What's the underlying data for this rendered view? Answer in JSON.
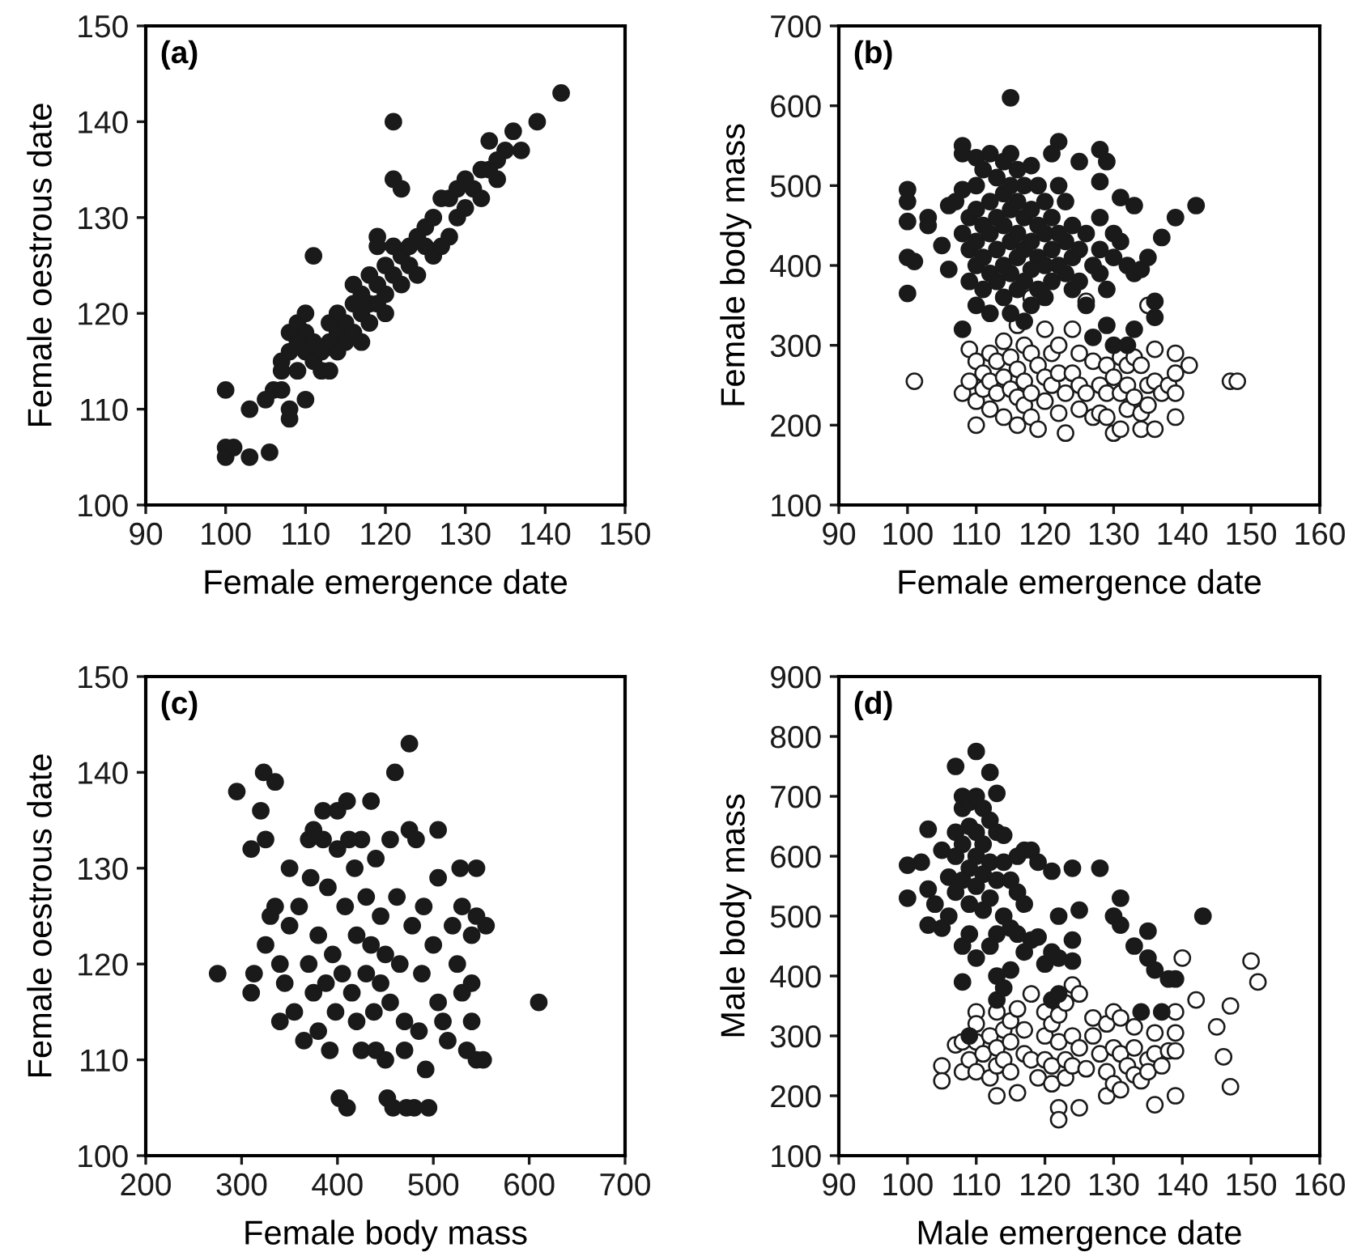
{
  "chart_data": [
    {
      "type": "scatter",
      "annotations": [
        "(a)"
      ],
      "xlabel": "Female emergence date",
      "ylabel": "Female oestrous date",
      "marker": "circle",
      "xlim": [
        90,
        150
      ],
      "xticks": [
        90,
        100,
        110,
        120,
        130,
        140,
        150
      ],
      "ylim": [
        100,
        150
      ],
      "yticks": [
        100,
        110,
        120,
        130,
        140,
        150
      ],
      "series": [
        {
          "color": "#1a1a1a",
          "x": [
            100,
            100,
            100,
            101,
            103,
            103,
            105.5,
            105,
            106,
            107,
            107,
            107,
            108,
            108,
            108,
            108,
            109,
            109,
            109,
            110,
            110,
            110,
            110,
            111,
            111,
            111,
            112,
            112,
            113,
            113,
            113,
            114,
            114,
            114,
            115,
            115,
            116,
            116,
            116,
            117,
            117,
            117,
            118,
            118,
            118,
            119,
            119,
            119,
            119,
            120,
            120,
            120,
            121,
            121,
            121,
            121,
            122,
            122,
            122,
            123,
            123,
            124,
            124,
            125,
            125,
            126,
            126,
            127,
            127,
            128,
            128,
            129,
            129,
            130,
            130,
            131,
            132,
            132,
            133,
            133,
            134,
            134,
            135,
            136,
            137,
            139,
            142
          ],
          "values": [
            112,
            106,
            105,
            106,
            110,
            105,
            105.5,
            111,
            112,
            115,
            114,
            112,
            109,
            110,
            118,
            116,
            119,
            117,
            114,
            120,
            111,
            116,
            118,
            126,
            115,
            117,
            114,
            116,
            119,
            117,
            114,
            120,
            118,
            116,
            117,
            119,
            123,
            121,
            118,
            117,
            120,
            122,
            119,
            121,
            124,
            128,
            127,
            123,
            121,
            125,
            122,
            120,
            140,
            134,
            127,
            124,
            133,
            126,
            123,
            127,
            125,
            128,
            124,
            129,
            127,
            130,
            126,
            132,
            127,
            128,
            132,
            133,
            130,
            134,
            131,
            133,
            132,
            135,
            138,
            135,
            136,
            134,
            137,
            139,
            137,
            140,
            143
          ]
        }
      ]
    },
    {
      "type": "scatter",
      "annotations": [
        "(b)"
      ],
      "xlabel": "Female emergence date",
      "ylabel": "Female body mass",
      "marker": "circle",
      "xlim": [
        90,
        160
      ],
      "xticks": [
        90,
        100,
        110,
        120,
        130,
        140,
        150,
        160
      ],
      "ylim": [
        100,
        700
      ],
      "yticks": [
        100,
        200,
        300,
        400,
        500,
        600,
        700
      ],
      "series": [
        {
          "color": "#1a1a1a",
          "x": [
            100,
            100,
            100,
            100,
            100,
            101,
            103,
            103,
            105,
            106,
            106,
            107,
            108,
            108,
            108,
            108,
            108,
            109,
            109,
            109,
            110,
            110,
            110,
            110,
            110,
            110,
            111,
            111,
            111,
            111,
            112,
            112,
            112,
            112,
            112,
            113,
            113,
            113,
            113,
            114,
            114,
            114,
            114,
            114,
            115,
            115,
            115,
            115,
            115,
            115,
            115,
            116,
            116,
            116,
            116,
            116,
            117,
            117,
            117,
            117,
            117,
            118,
            118,
            118,
            118,
            118,
            119,
            119,
            119,
            119,
            120,
            120,
            120,
            120,
            121,
            121,
            121,
            121,
            122,
            122,
            122,
            122,
            123,
            123,
            123,
            124,
            124,
            124,
            125,
            125,
            125,
            126,
            126,
            127,
            127,
            128,
            128,
            128,
            128,
            128,
            129,
            129,
            129,
            130,
            130,
            130,
            131,
            131,
            132,
            132,
            133,
            133,
            133,
            134,
            135,
            136,
            136,
            137,
            139,
            142
          ],
          "values": [
            495,
            480,
            455,
            410,
            365,
            405,
            460,
            450,
            425,
            475,
            395,
            480,
            550,
            540,
            495,
            440,
            320,
            460,
            420,
            380,
            535,
            500,
            470,
            430,
            400,
            350,
            520,
            450,
            410,
            370,
            540,
            480,
            440,
            390,
            340,
            510,
            460,
            420,
            380,
            530,
            490,
            450,
            400,
            360,
            610,
            540,
            500,
            470,
            430,
            390,
            340,
            520,
            480,
            440,
            410,
            370,
            500,
            460,
            420,
            380,
            330,
            525,
            470,
            430,
            395,
            350,
            500,
            450,
            410,
            370,
            480,
            440,
            400,
            360,
            540,
            460,
            420,
            380,
            555,
            500,
            440,
            400,
            480,
            430,
            390,
            450,
            410,
            370,
            530,
            420,
            380,
            440,
            350,
            400,
            310,
            545,
            505,
            460,
            420,
            390,
            530,
            370,
            325,
            440,
            410,
            300,
            485,
            430,
            400,
            300,
            475,
            390,
            320,
            395,
            410,
            355,
            335,
            435,
            460,
            475
          ]
        },
        {
          "color": "#ffffff",
          "x": [
            101,
            108,
            109,
            109,
            110,
            110,
            110,
            111,
            111,
            112,
            112,
            112,
            113,
            113,
            114,
            114,
            114,
            115,
            115,
            116,
            116,
            116,
            116,
            117,
            117,
            117,
            118,
            118,
            118,
            118,
            119,
            119,
            120,
            120,
            120,
            121,
            121,
            122,
            122,
            122,
            123,
            123,
            124,
            124,
            125,
            125,
            125,
            126,
            126,
            127,
            127,
            128,
            128,
            129,
            129,
            129,
            130,
            130,
            131,
            131,
            131,
            132,
            132,
            132,
            133,
            133,
            134,
            134,
            134,
            135,
            135,
            135,
            136,
            136,
            136,
            137,
            138,
            139,
            139,
            139,
            139,
            141,
            147,
            148
          ],
          "values": [
            255,
            240,
            295,
            255,
            200,
            280,
            230,
            265,
            245,
            290,
            255,
            220,
            280,
            240,
            305,
            260,
            210,
            285,
            245,
            325,
            270,
            235,
            200,
            300,
            255,
            225,
            290,
            360,
            240,
            210,
            275,
            195,
            320,
            260,
            230,
            290,
            250,
            300,
            265,
            215,
            240,
            190,
            320,
            265,
            290,
            250,
            220,
            355,
            240,
            280,
            210,
            250,
            215,
            275,
            240,
            210,
            190,
            260,
            195,
            285,
            240,
            275,
            250,
            220,
            285,
            235,
            275,
            195,
            215,
            350,
            250,
            225,
            295,
            255,
            195,
            240,
            250,
            290,
            265,
            240,
            210,
            275,
            255,
            255
          ]
        }
      ]
    },
    {
      "type": "scatter",
      "annotations": [
        "(c)"
      ],
      "xlabel": "Female body mass",
      "ylabel": "Female oestrous date",
      "marker": "circle",
      "xlim": [
        200,
        700
      ],
      "xticks": [
        200,
        300,
        400,
        500,
        600,
        700
      ],
      "ylim": [
        100,
        150
      ],
      "yticks": [
        100,
        110,
        120,
        130,
        140,
        150
      ],
      "series": [
        {
          "color": "#1a1a1a",
          "x": [
            275,
            295,
            310,
            310,
            313,
            320,
            323,
            325,
            325,
            335,
            330,
            335,
            340,
            340,
            345,
            350,
            350,
            355,
            360,
            365,
            370,
            370,
            372,
            375,
            375,
            380,
            380,
            385,
            385,
            388,
            390,
            392,
            395,
            398,
            400,
            400,
            402,
            405,
            408,
            410,
            410,
            412,
            415,
            418,
            420,
            420,
            425,
            425,
            430,
            430,
            435,
            435,
            438,
            440,
            440,
            445,
            445,
            450,
            450,
            452,
            455,
            455,
            458,
            460,
            462,
            465,
            470,
            470,
            472,
            475,
            475,
            478,
            480,
            482,
            485,
            488,
            490,
            492,
            495,
            500,
            505,
            505,
            505,
            510,
            515,
            520,
            525,
            528,
            530,
            530,
            535,
            540,
            540,
            540,
            545,
            545,
            545,
            552,
            555,
            610
          ],
          "values": [
            119,
            138,
            132,
            117,
            119,
            136,
            140,
            133,
            122,
            139,
            125,
            126,
            114,
            120,
            118,
            130,
            124,
            115,
            126,
            112,
            133,
            120,
            129,
            134,
            117,
            123,
            113,
            136,
            133,
            118,
            128,
            111,
            121,
            115,
            136,
            132,
            106,
            119,
            126,
            105,
            137,
            133,
            117,
            130,
            123,
            114,
            111,
            133,
            127,
            119,
            137,
            122,
            115,
            131,
            111,
            125,
            118,
            110,
            121,
            106,
            133,
            116,
            105,
            140,
            127,
            120,
            111,
            114,
            105,
            143,
            134,
            124,
            105,
            133,
            113,
            119,
            126,
            109,
            105,
            122,
            134,
            129,
            116,
            114,
            112,
            124,
            120,
            130,
            126,
            117,
            111,
            123,
            118,
            114,
            130,
            125,
            110,
            110,
            124,
            116
          ]
        }
      ]
    },
    {
      "type": "scatter",
      "annotations": [
        "(d)"
      ],
      "xlabel": "Male emergence date",
      "ylabel": "Male body mass",
      "marker": "circle",
      "xlim": [
        90,
        160
      ],
      "xticks": [
        90,
        100,
        110,
        120,
        130,
        140,
        150,
        160
      ],
      "ylim": [
        100,
        900
      ],
      "yticks": [
        100,
        200,
        300,
        400,
        500,
        600,
        700,
        800,
        900
      ],
      "series": [
        {
          "color": "#1a1a1a",
          "x": [
            100,
            100,
            102,
            103,
            103,
            103,
            104,
            105,
            105,
            106,
            106,
            107,
            107,
            107,
            107,
            108,
            108,
            108,
            108,
            108,
            108,
            109,
            109,
            109,
            109,
            109,
            109,
            110,
            110,
            110,
            110,
            110,
            110,
            111,
            111,
            111,
            111,
            112,
            112,
            112,
            112,
            112,
            113,
            113,
            113,
            113,
            113,
            113,
            114,
            114,
            114,
            114,
            115,
            115,
            115,
            116,
            116,
            116,
            117,
            117,
            117,
            118,
            118,
            119,
            119,
            120,
            121,
            121,
            121,
            122,
            122,
            122,
            124,
            124,
            124,
            125,
            128,
            130,
            131,
            131,
            133,
            134,
            135,
            135,
            136,
            137,
            138,
            139,
            143
          ],
          "values": [
            585,
            530,
            590,
            545,
            485,
            645,
            520,
            610,
            480,
            565,
            500,
            750,
            640,
            600,
            540,
            700,
            680,
            620,
            560,
            450,
            390,
            690,
            650,
            580,
            520,
            470,
            300,
            775,
            700,
            640,
            600,
            550,
            430,
            680,
            620,
            570,
            510,
            740,
            660,
            590,
            530,
            450,
            705,
            640,
            560,
            470,
            400,
            360,
            635,
            590,
            500,
            380,
            560,
            480,
            410,
            600,
            540,
            470,
            610,
            520,
            440,
            610,
            460,
            590,
            465,
            420,
            575,
            440,
            360,
            500,
            430,
            370,
            580,
            460,
            425,
            510,
            580,
            500,
            530,
            485,
            450,
            340,
            475,
            430,
            410,
            340,
            395,
            395,
            500
          ]
        },
        {
          "color": "#ffffff",
          "x": [
            105,
            105,
            107,
            108,
            108,
            109,
            110,
            110,
            110,
            110,
            111,
            112,
            112,
            113,
            113,
            113,
            113,
            114,
            114,
            115,
            115,
            115,
            116,
            116,
            117,
            117,
            118,
            118,
            119,
            120,
            120,
            120,
            121,
            121,
            121,
            122,
            122,
            122,
            122,
            123,
            123,
            123,
            124,
            124,
            124,
            125,
            125,
            125,
            126,
            127,
            127,
            128,
            129,
            129,
            129,
            130,
            130,
            130,
            131,
            131,
            131,
            132,
            133,
            133,
            133,
            134,
            135,
            135,
            136,
            136,
            136,
            137,
            138,
            139,
            139,
            139,
            139,
            140,
            142,
            145,
            146,
            147,
            147,
            150,
            151
          ],
          "values": [
            250,
            225,
            285,
            240,
            290,
            260,
            340,
            320,
            290,
            240,
            270,
            300,
            230,
            340,
            280,
            250,
            200,
            310,
            260,
            325,
            290,
            240,
            205,
            345,
            310,
            270,
            370,
            260,
            230,
            340,
            300,
            260,
            320,
            250,
            220,
            335,
            290,
            180,
            160,
            355,
            260,
            230,
            385,
            300,
            250,
            370,
            280,
            180,
            245,
            330,
            300,
            270,
            320,
            240,
            200,
            340,
            280,
            220,
            330,
            270,
            210,
            250,
            315,
            280,
            235,
            225,
            260,
            240,
            305,
            270,
            185,
            250,
            275,
            340,
            305,
            275,
            200,
            430,
            360,
            315,
            265,
            350,
            215,
            425,
            390
          ]
        }
      ]
    }
  ]
}
